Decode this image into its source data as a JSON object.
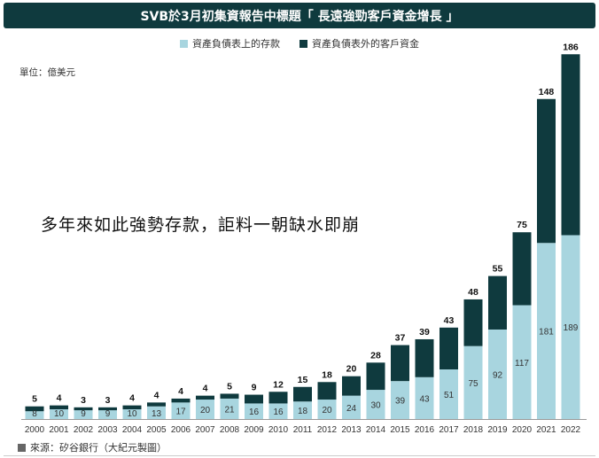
{
  "title": "SVB於3月初集資報告中標題「 長遠強勁客戶資金增長 」",
  "unit": "單位：億美元",
  "annotation": "多年來如此強勢存款，詎料一朝缺水即崩",
  "source": "來源：矽谷銀行（大紀元製圖）",
  "colors": {
    "title_bg": "#0f3a3e",
    "on_balance": "#a8d5df",
    "off_balance": "#0f3a3e",
    "source_square": "#666666"
  },
  "chart_data": {
    "type": "bar",
    "stacked": true,
    "categories": [
      "2000",
      "2001",
      "2002",
      "2003",
      "2004",
      "2005",
      "2006",
      "2007",
      "2008",
      "2009",
      "2010",
      "2011",
      "2012",
      "2013",
      "2014",
      "2015",
      "2016",
      "2017",
      "2018",
      "2019",
      "2020",
      "2021",
      "2022"
    ],
    "series": [
      {
        "name": "資產負債表上的存款",
        "values": [
          8,
          10,
          9,
          9,
          10,
          13,
          17,
          20,
          21,
          16,
          16,
          18,
          20,
          24,
          30,
          39,
          43,
          51,
          75,
          92,
          117,
          181,
          189
        ]
      },
      {
        "name": "資產負債表外的客戶資金",
        "values": [
          5,
          4,
          3,
          3,
          4,
          4,
          4,
          4,
          5,
          9,
          12,
          15,
          18,
          20,
          28,
          37,
          39,
          43,
          48,
          55,
          75,
          148,
          186
        ]
      }
    ],
    "legend_position": "top",
    "grid": false
  }
}
